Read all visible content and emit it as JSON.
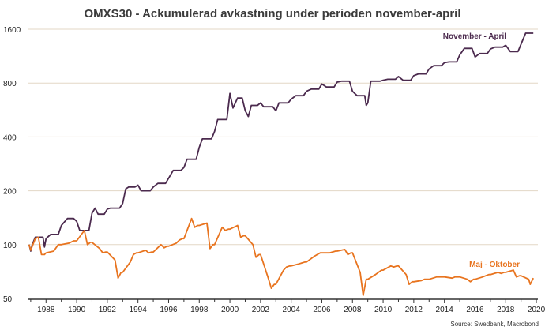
{
  "chart_data": {
    "type": "line",
    "title": "OMXS30 - Ackumulerad avkastning under perioden november-april",
    "xlabel": "",
    "ylabel": "",
    "y_scale": "log",
    "ylim": [
      50,
      1600
    ],
    "xlim": [
      1986.8,
      2020.1
    ],
    "y_ticks": [
      {
        "value": 50,
        "label": "50"
      },
      {
        "value": 100,
        "label": "100"
      },
      {
        "value": 200,
        "label": "200"
      },
      {
        "value": 400,
        "label": "400"
      },
      {
        "value": 800,
        "label": "800"
      },
      {
        "value": 1600,
        "label": "1600"
      }
    ],
    "x_ticks": [
      {
        "value": 1988,
        "label": "1988"
      },
      {
        "value": 1990,
        "label": "1990"
      },
      {
        "value": 1992,
        "label": "1992"
      },
      {
        "value": 1994,
        "label": "1994"
      },
      {
        "value": 1996,
        "label": "1996"
      },
      {
        "value": 1998,
        "label": "1998"
      },
      {
        "value": 2000,
        "label": "2000"
      },
      {
        "value": 2002,
        "label": "2002"
      },
      {
        "value": 2004,
        "label": "2004"
      },
      {
        "value": 2006,
        "label": "2006"
      },
      {
        "value": 2008,
        "label": "2008"
      },
      {
        "value": 2010,
        "label": "2010"
      },
      {
        "value": 2012,
        "label": "2012"
      },
      {
        "value": 2014,
        "label": "2014"
      },
      {
        "value": 2016,
        "label": "2016"
      },
      {
        "value": 2018,
        "label": "2018"
      },
      {
        "value": 2020,
        "label": "2020"
      }
    ],
    "grid": "horizontal",
    "series": [
      {
        "name": "November - April",
        "color": "#4b2a4e",
        "points": [
          [
            1986.9,
            100
          ],
          [
            1987.0,
            92
          ],
          [
            1987.1,
            100
          ],
          [
            1987.3,
            110
          ],
          [
            1987.8,
            110
          ],
          [
            1987.9,
            97
          ],
          [
            1988.0,
            108
          ],
          [
            1988.3,
            114
          ],
          [
            1988.8,
            114
          ],
          [
            1989.0,
            128
          ],
          [
            1989.4,
            140
          ],
          [
            1989.8,
            140
          ],
          [
            1990.0,
            135
          ],
          [
            1990.2,
            120
          ],
          [
            1990.4,
            120
          ],
          [
            1990.8,
            120
          ],
          [
            1991.0,
            150
          ],
          [
            1991.2,
            160
          ],
          [
            1991.4,
            148
          ],
          [
            1991.8,
            148
          ],
          [
            1992.0,
            158
          ],
          [
            1992.2,
            160
          ],
          [
            1992.8,
            160
          ],
          [
            1993.0,
            170
          ],
          [
            1993.2,
            205
          ],
          [
            1993.4,
            210
          ],
          [
            1993.8,
            210
          ],
          [
            1994.0,
            215
          ],
          [
            1994.2,
            200
          ],
          [
            1994.8,
            200
          ],
          [
            1995.0,
            210
          ],
          [
            1995.3,
            220
          ],
          [
            1995.8,
            220
          ],
          [
            1996.0,
            235
          ],
          [
            1996.3,
            260
          ],
          [
            1996.8,
            260
          ],
          [
            1997.0,
            270
          ],
          [
            1997.2,
            300
          ],
          [
            1997.8,
            300
          ],
          [
            1998.0,
            350
          ],
          [
            1998.2,
            390
          ],
          [
            1998.8,
            390
          ],
          [
            1999.0,
            430
          ],
          [
            1999.2,
            500
          ],
          [
            1999.8,
            500
          ],
          [
            2000.0,
            700
          ],
          [
            2000.2,
            580
          ],
          [
            2000.5,
            660
          ],
          [
            2000.8,
            660
          ],
          [
            2001.0,
            560
          ],
          [
            2001.2,
            520
          ],
          [
            2001.4,
            600
          ],
          [
            2001.8,
            600
          ],
          [
            2002.0,
            620
          ],
          [
            2002.2,
            590
          ],
          [
            2002.8,
            590
          ],
          [
            2003.0,
            560
          ],
          [
            2003.2,
            620
          ],
          [
            2003.8,
            620
          ],
          [
            2004.0,
            650
          ],
          [
            2004.3,
            680
          ],
          [
            2004.8,
            680
          ],
          [
            2005.0,
            720
          ],
          [
            2005.3,
            740
          ],
          [
            2005.8,
            740
          ],
          [
            2006.0,
            790
          ],
          [
            2006.3,
            760
          ],
          [
            2006.8,
            760
          ],
          [
            2007.0,
            810
          ],
          [
            2007.3,
            820
          ],
          [
            2007.8,
            820
          ],
          [
            2008.0,
            720
          ],
          [
            2008.3,
            680
          ],
          [
            2008.8,
            680
          ],
          [
            2008.9,
            600
          ],
          [
            2009.0,
            620
          ],
          [
            2009.2,
            820
          ],
          [
            2009.8,
            820
          ],
          [
            2010.0,
            830
          ],
          [
            2010.3,
            840
          ],
          [
            2010.8,
            840
          ],
          [
            2011.0,
            870
          ],
          [
            2011.3,
            830
          ],
          [
            2011.8,
            830
          ],
          [
            2012.0,
            880
          ],
          [
            2012.3,
            900
          ],
          [
            2012.8,
            900
          ],
          [
            2013.0,
            960
          ],
          [
            2013.3,
            1000
          ],
          [
            2013.8,
            1000
          ],
          [
            2014.0,
            1040
          ],
          [
            2014.3,
            1050
          ],
          [
            2014.8,
            1050
          ],
          [
            2015.0,
            1150
          ],
          [
            2015.3,
            1250
          ],
          [
            2015.8,
            1250
          ],
          [
            2016.0,
            1120
          ],
          [
            2016.3,
            1170
          ],
          [
            2016.8,
            1170
          ],
          [
            2017.0,
            1240
          ],
          [
            2017.3,
            1270
          ],
          [
            2017.8,
            1270
          ],
          [
            2018.0,
            1300
          ],
          [
            2018.3,
            1200
          ],
          [
            2018.8,
            1200
          ],
          [
            2019.0,
            1320
          ],
          [
            2019.3,
            1520
          ],
          [
            2019.8,
            1520
          ]
        ]
      },
      {
        "name": "Maj - Oktober",
        "color": "#e8741f",
        "points": [
          [
            1986.9,
            100
          ],
          [
            1987.0,
            93
          ],
          [
            1987.3,
            108
          ],
          [
            1987.5,
            110
          ],
          [
            1987.7,
            88
          ],
          [
            1987.9,
            88
          ],
          [
            1988.0,
            90
          ],
          [
            1988.5,
            92
          ],
          [
            1988.8,
            100
          ],
          [
            1989.0,
            100
          ],
          [
            1989.5,
            102
          ],
          [
            1989.8,
            105
          ],
          [
            1990.0,
            105
          ],
          [
            1990.5,
            120
          ],
          [
            1990.7,
            100
          ],
          [
            1990.9,
            103
          ],
          [
            1991.0,
            103
          ],
          [
            1991.5,
            95
          ],
          [
            1991.7,
            90
          ],
          [
            1991.9,
            91
          ],
          [
            1992.0,
            91
          ],
          [
            1992.5,
            82
          ],
          [
            1992.7,
            65
          ],
          [
            1992.9,
            70
          ],
          [
            1993.0,
            70
          ],
          [
            1993.5,
            80
          ],
          [
            1993.7,
            88
          ],
          [
            1993.9,
            90
          ],
          [
            1994.0,
            90
          ],
          [
            1994.5,
            93
          ],
          [
            1994.7,
            90
          ],
          [
            1994.9,
            91
          ],
          [
            1995.0,
            91
          ],
          [
            1995.5,
            100
          ],
          [
            1995.7,
            96
          ],
          [
            1995.9,
            98
          ],
          [
            1996.0,
            98
          ],
          [
            1996.5,
            102
          ],
          [
            1996.7,
            106
          ],
          [
            1996.9,
            108
          ],
          [
            1997.0,
            108
          ],
          [
            1997.5,
            140
          ],
          [
            1997.7,
            125
          ],
          [
            1997.9,
            128
          ],
          [
            1998.0,
            128
          ],
          [
            1998.5,
            132
          ],
          [
            1998.7,
            95
          ],
          [
            1998.9,
            100
          ],
          [
            1999.0,
            100
          ],
          [
            1999.5,
            125
          ],
          [
            1999.7,
            120
          ],
          [
            1999.9,
            122
          ],
          [
            2000.0,
            122
          ],
          [
            2000.5,
            128
          ],
          [
            2000.7,
            110
          ],
          [
            2000.9,
            112
          ],
          [
            2001.0,
            112
          ],
          [
            2001.5,
            100
          ],
          [
            2001.7,
            85
          ],
          [
            2001.9,
            88
          ],
          [
            2002.0,
            88
          ],
          [
            2002.5,
            65
          ],
          [
            2002.7,
            57
          ],
          [
            2002.9,
            60
          ],
          [
            2003.0,
            60
          ],
          [
            2003.5,
            72
          ],
          [
            2003.7,
            75
          ],
          [
            2003.9,
            76
          ],
          [
            2004.0,
            76
          ],
          [
            2004.5,
            78
          ],
          [
            2004.7,
            79
          ],
          [
            2004.9,
            80
          ],
          [
            2005.0,
            80
          ],
          [
            2005.5,
            86
          ],
          [
            2005.7,
            88
          ],
          [
            2005.9,
            90
          ],
          [
            2006.0,
            90
          ],
          [
            2006.5,
            90
          ],
          [
            2006.7,
            91
          ],
          [
            2006.9,
            92
          ],
          [
            2007.0,
            92
          ],
          [
            2007.5,
            94
          ],
          [
            2007.7,
            88
          ],
          [
            2007.9,
            90
          ],
          [
            2008.0,
            90
          ],
          [
            2008.5,
            70
          ],
          [
            2008.7,
            52
          ],
          [
            2008.9,
            64
          ],
          [
            2009.0,
            64
          ],
          [
            2009.5,
            68
          ],
          [
            2009.7,
            70
          ],
          [
            2009.9,
            72
          ],
          [
            2010.0,
            72
          ],
          [
            2010.5,
            76
          ],
          [
            2010.7,
            75
          ],
          [
            2010.9,
            76
          ],
          [
            2011.0,
            76
          ],
          [
            2011.5,
            68
          ],
          [
            2011.7,
            60
          ],
          [
            2011.9,
            62
          ],
          [
            2012.0,
            62
          ],
          [
            2012.5,
            63
          ],
          [
            2012.7,
            64
          ],
          [
            2012.9,
            64
          ],
          [
            2013.0,
            64
          ],
          [
            2013.5,
            66
          ],
          [
            2013.7,
            66
          ],
          [
            2013.9,
            66
          ],
          [
            2014.0,
            66
          ],
          [
            2014.5,
            65
          ],
          [
            2014.7,
            66
          ],
          [
            2014.9,
            66
          ],
          [
            2015.0,
            66
          ],
          [
            2015.5,
            64
          ],
          [
            2015.7,
            62
          ],
          [
            2015.9,
            64
          ],
          [
            2016.0,
            64
          ],
          [
            2016.5,
            66
          ],
          [
            2016.7,
            67
          ],
          [
            2016.9,
            68
          ],
          [
            2017.0,
            68
          ],
          [
            2017.5,
            70
          ],
          [
            2017.7,
            69
          ],
          [
            2017.9,
            70
          ],
          [
            2018.0,
            70
          ],
          [
            2018.5,
            72
          ],
          [
            2018.7,
            66
          ],
          [
            2018.9,
            67
          ],
          [
            2019.0,
            67
          ],
          [
            2019.5,
            64
          ],
          [
            2019.6,
            60
          ],
          [
            2019.8,
            65
          ]
        ]
      }
    ],
    "annotations": [
      "November - April",
      "Maj - Oktober"
    ],
    "source": "Source: Swedbank, Macrobond"
  }
}
